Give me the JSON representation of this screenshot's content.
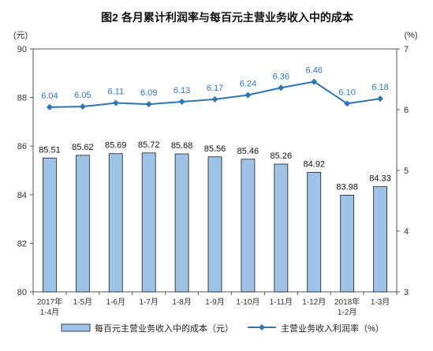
{
  "chart_data": {
    "type": "bar",
    "title": "图2  各月累计利润率与每百元主营业务收入中的成本",
    "left_unit": "(元)",
    "right_unit": "(%)",
    "categories": [
      [
        "2017年",
        "1-4月"
      ],
      [
        "1-5月"
      ],
      [
        "1-6月"
      ],
      [
        "1-7月"
      ],
      [
        "1-8月"
      ],
      [
        "1-9月"
      ],
      [
        "1-10月"
      ],
      [
        "1-11月"
      ],
      [
        "1-12月"
      ],
      [
        "2018年",
        "1-2月"
      ],
      [
        "1-3月"
      ]
    ],
    "ylim_left": [
      80,
      90
    ],
    "yticks_left": [
      80,
      82,
      84,
      86,
      88,
      90
    ],
    "ylim_right": [
      3,
      7
    ],
    "yticks_right": [
      3,
      4,
      5,
      6,
      7
    ],
    "series": [
      {
        "name": "每百元主营业务收入中的成本（元）",
        "type": "bar",
        "axis": "left",
        "color": "#9dc3e6",
        "values": [
          85.51,
          85.62,
          85.69,
          85.72,
          85.68,
          85.56,
          85.46,
          85.26,
          84.92,
          83.98,
          84.33
        ],
        "labels": [
          "85.51",
          "85.62",
          "85.69",
          "85.72",
          "85.68",
          "85.56",
          "85.46",
          "85.26",
          "84.92",
          "83.98",
          "84.33"
        ]
      },
      {
        "name": "主营业务收入利润率（%）",
        "type": "line",
        "axis": "right",
        "color": "#2e75b6",
        "values": [
          6.04,
          6.05,
          6.11,
          6.09,
          6.13,
          6.17,
          6.24,
          6.36,
          6.46,
          6.1,
          6.18
        ],
        "labels": [
          "6.04",
          "6.05",
          "6.11",
          "6.09",
          "6.13",
          "6.17",
          "6.24",
          "6.36",
          "6.46",
          "6.10",
          "6.18"
        ]
      }
    ],
    "grid": false,
    "legend_position": "bottom"
  }
}
